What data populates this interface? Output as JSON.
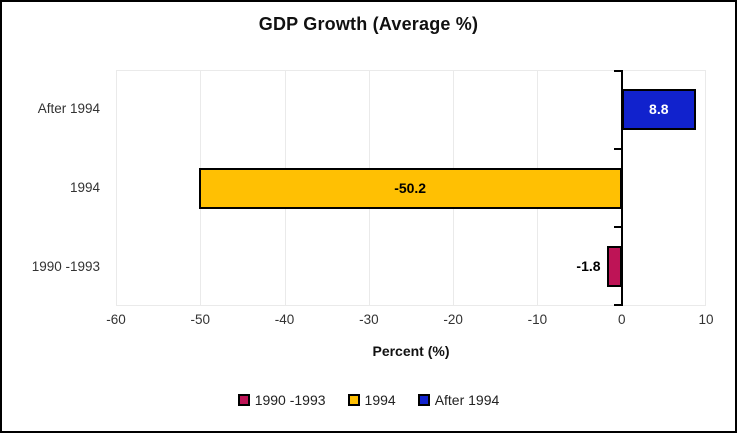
{
  "title": "GDP Growth (Average %)",
  "chart_data": {
    "type": "bar",
    "orientation": "horizontal",
    "title": "GDP Growth (Average %)",
    "xlabel": "Percent (%)",
    "ylabel": "",
    "categories": [
      "After 1994",
      "1994",
      "1990 -1993"
    ],
    "values": [
      8.8,
      -50.2,
      -1.8
    ],
    "value_labels": [
      "8.8",
      "-50.2",
      "-1.8"
    ],
    "bar_colors": [
      "#1122CD",
      "#FFC003",
      "#BE1456"
    ],
    "value_label_inside": [
      true,
      true,
      false
    ],
    "value_label_colors": [
      "#FFFFFF",
      "#000000",
      "#000000"
    ],
    "xlim": [
      -60,
      10
    ],
    "xticks": [
      -60,
      -50,
      -40,
      -30,
      -20,
      -10,
      0,
      10
    ],
    "xtick_labels": [
      "-60",
      "-50",
      "-40",
      "-30",
      "-20",
      "-10",
      "0",
      "10"
    ],
    "grid": true,
    "legend_position": "bottom",
    "legend": [
      {
        "label": "1990 -1993",
        "color": "#BE1456"
      },
      {
        "label": "1994",
        "color": "#FFC003"
      },
      {
        "label": "After 1994",
        "color": "#1122CD"
      }
    ]
  },
  "colors": {
    "background": "#FFFFFF",
    "outer_border": "#000000",
    "gridline": "#EAEAEA",
    "axis_line": "#000000",
    "bar_border": "#000000",
    "text": "#333333"
  }
}
